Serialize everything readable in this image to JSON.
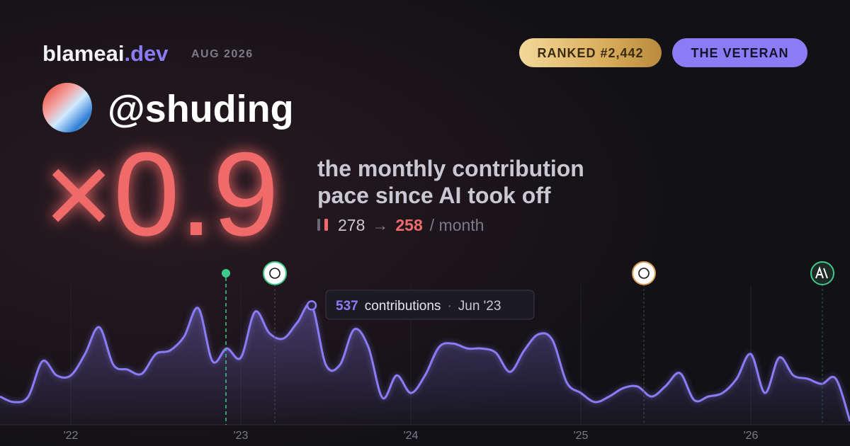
{
  "header": {
    "brand": "blameai",
    "brand_tld": ".dev",
    "date": "AUG 2026",
    "rank": "RANKED #2,442",
    "badge": "THE VETERAN",
    "handle": "@shuding"
  },
  "hero": {
    "multiplier": "×0.9",
    "caption": [
      "the monthly contribution",
      "pace since AI took off"
    ],
    "before": 278,
    "arrow": "→",
    "after": 258,
    "unit": "/ month"
  },
  "chart_data": {
    "type": "line",
    "color": "#8b7cf6",
    "grid": true,
    "ylim": [
      0,
      640
    ],
    "categories": [
      null,
      null,
      null,
      null,
      null,
      "'22",
      null,
      null,
      null,
      null,
      null,
      null,
      null,
      null,
      null,
      null,
      null,
      "'23",
      null,
      null,
      null,
      null,
      null,
      null,
      null,
      null,
      null,
      null,
      null,
      "'24",
      null,
      null,
      null,
      null,
      null,
      null,
      null,
      null,
      null,
      null,
      null,
      "'25",
      null,
      null,
      null,
      null,
      null,
      null,
      null,
      null,
      null,
      null,
      null,
      "'26",
      null,
      null,
      null,
      null,
      null,
      null,
      null
    ],
    "values": [
      127,
      102,
      127,
      286,
      222,
      222,
      318,
      439,
      270,
      248,
      229,
      318,
      334,
      397,
      524,
      286,
      343,
      302,
      508,
      413,
      388,
      461,
      537,
      270,
      270,
      429,
      350,
      121,
      222,
      143,
      222,
      350,
      365,
      343,
      343,
      324,
      238,
      334,
      407,
      381,
      191,
      143,
      102,
      127,
      165,
      172,
      127,
      175,
      232,
      111,
      127,
      143,
      207,
      318,
      143,
      302,
      222,
      207,
      184,
      207,
      16
    ],
    "tooltip": {
      "unit": "contributions",
      "separator": "·",
      "label": "Jun '23"
    }
  }
}
